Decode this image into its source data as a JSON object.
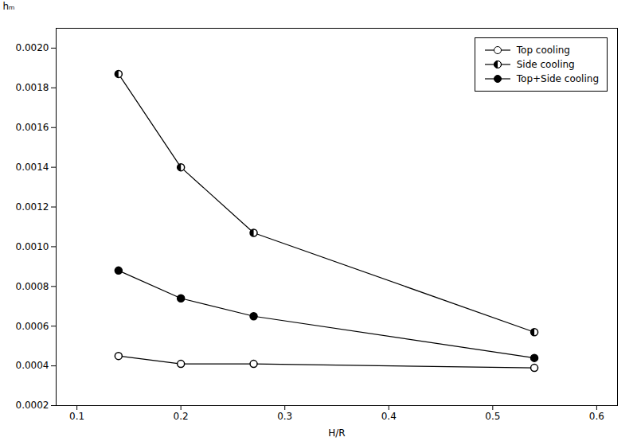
{
  "chart_data": {
    "type": "line",
    "xlabel": "H/R",
    "ylabel": "hₘ",
    "x": [
      0.14,
      0.2,
      0.27,
      0.54
    ],
    "series": [
      {
        "name": "Top cooling",
        "color": "black",
        "marker": "circle-open",
        "line_style": "solid",
        "values": [
          0.00045,
          0.00041,
          0.00041,
          0.00039
        ]
      },
      {
        "name": "Side cooling",
        "color": "black",
        "marker": "circle-half",
        "line_style": "solid",
        "values": [
          0.00187,
          0.0014,
          0.00107,
          0.00057
        ]
      },
      {
        "name": "Top+Side cooling",
        "color": "black",
        "marker": "circle-filled",
        "line_style": "solid",
        "values": [
          0.00088,
          0.00074,
          0.00065,
          0.00044
        ]
      }
    ],
    "xlim": [
      0.08,
      0.62
    ],
    "ylim": [
      0.0002,
      0.0021
    ],
    "xticks": [
      0.1,
      0.2,
      0.3,
      0.4,
      0.5,
      0.6
    ],
    "yticks": [
      0.0002,
      0.0004,
      0.0006,
      0.0008,
      {
        "value": 0.001,
        "label": "0.0010"
      },
      0.0012,
      0.0014,
      0.0016,
      0.0018,
      {
        "value": 0.002,
        "label": "0.0020"
      }
    ],
    "grid": false,
    "legend": "upper right"
  }
}
